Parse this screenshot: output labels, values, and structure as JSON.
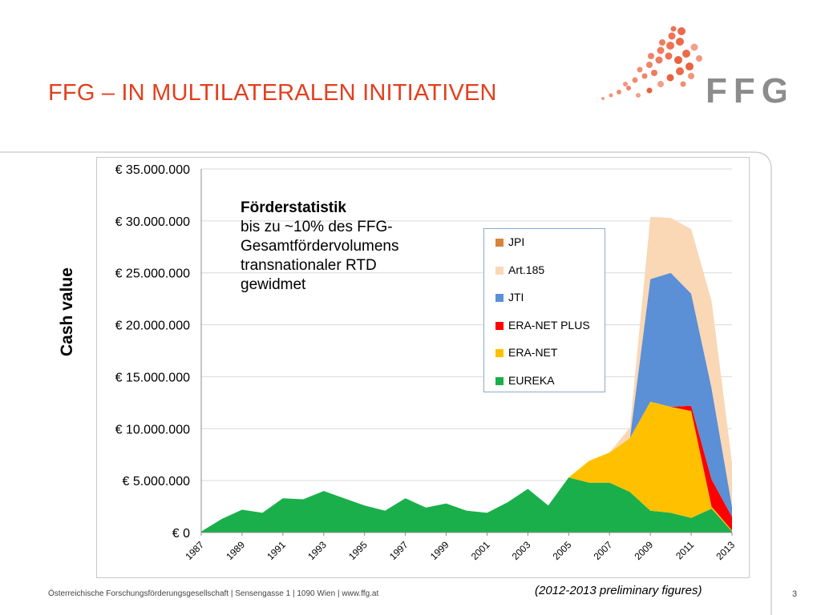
{
  "slide": {
    "title": "FFG – IN MULTILATERALEN INITIATIVEN",
    "logo_text": "FFG",
    "footer": "Österreichische Forschungsförderungsgesellschaft | Sensengasse 1 | 1090 Wien | www.ffg.at",
    "note": "(2012-2013 preliminary figures)",
    "page_number": "3"
  },
  "colors": {
    "title": "#e2401f",
    "logo_dots": "#e8502a",
    "logo_text": "#8c8c8c"
  },
  "annotation": {
    "heading": "Förderstatistik",
    "lines": [
      "bis zu ~10% des FFG-",
      "Gesamtfördervolumens",
      "transnationaler RTD",
      "gewidmet"
    ]
  },
  "chart_data": {
    "type": "area",
    "stacked": true,
    "ylabel": "Cash value",
    "xlabel": "",
    "ylim": [
      0,
      35000000
    ],
    "yticks": [
      0,
      5000000,
      10000000,
      15000000,
      20000000,
      25000000,
      30000000,
      35000000
    ],
    "ytick_labels": [
      "€ 0",
      "€ 5.000.000",
      "€ 10.000.000",
      "€ 15.000.000",
      "€ 20.000.000",
      "€ 25.000.000",
      "€ 30.000.000",
      "€ 35.000.000"
    ],
    "x": [
      1987,
      1988,
      1989,
      1990,
      1991,
      1992,
      1993,
      1994,
      1995,
      1996,
      1997,
      1998,
      1999,
      2000,
      2001,
      2002,
      2003,
      2004,
      2005,
      2006,
      2007,
      2008,
      2009,
      2010,
      2011,
      2012,
      2013
    ],
    "xtick_labels": [
      "1987",
      "1989",
      "1991",
      "1993",
      "1995",
      "1997",
      "1999",
      "2001",
      "2003",
      "2005",
      "2007",
      "2009",
      "2011",
      "2013"
    ],
    "grid": "horizontal",
    "legend_position": "inside-right",
    "series": [
      {
        "name": "EUREKA",
        "color": "#1aaf4b",
        "values": [
          100000,
          1300000,
          2200000,
          1900000,
          3300000,
          3200000,
          4000000,
          3300000,
          2600000,
          2100000,
          3300000,
          2400000,
          2800000,
          2100000,
          1900000,
          2900000,
          4200000,
          2600000,
          5300000,
          4800000,
          4800000,
          3900000,
          2100000,
          1900000,
          1400000,
          2300000,
          100000
        ]
      },
      {
        "name": "ERA-NET",
        "color": "#ffc000",
        "values": [
          0,
          0,
          0,
          0,
          0,
          0,
          0,
          0,
          0,
          0,
          0,
          0,
          0,
          0,
          0,
          0,
          0,
          0,
          0,
          2100000,
          2900000,
          5200000,
          10500000,
          10200000,
          10300000,
          200000,
          100000
        ]
      },
      {
        "name": "ERA-NET PLUS",
        "color": "#ff0000",
        "values": [
          0,
          0,
          0,
          0,
          0,
          0,
          0,
          0,
          0,
          0,
          0,
          0,
          0,
          0,
          0,
          0,
          0,
          0,
          0,
          0,
          0,
          0,
          0,
          0,
          500000,
          2600000,
          1300000
        ]
      },
      {
        "name": "JTI",
        "color": "#5b8fd6",
        "values": [
          0,
          0,
          0,
          0,
          0,
          0,
          0,
          0,
          0,
          0,
          0,
          0,
          0,
          0,
          0,
          0,
          0,
          0,
          0,
          0,
          0,
          0,
          11800000,
          12900000,
          10800000,
          8800000,
          1000000
        ]
      },
      {
        "name": "Art.185",
        "color": "#fad7b5",
        "values": [
          0,
          0,
          0,
          0,
          0,
          0,
          0,
          0,
          0,
          0,
          0,
          0,
          0,
          0,
          0,
          0,
          0,
          0,
          0,
          0,
          0,
          1000000,
          6000000,
          5300000,
          6200000,
          8400000,
          4200000
        ]
      },
      {
        "name": "JPI",
        "color": "#d9833b",
        "values": [
          0,
          0,
          0,
          0,
          0,
          0,
          0,
          0,
          0,
          0,
          0,
          0,
          0,
          0,
          0,
          0,
          0,
          0,
          0,
          0,
          0,
          0,
          0,
          0,
          0,
          0,
          0
        ]
      }
    ],
    "legend_order": [
      "JPI",
      "Art.185",
      "JTI",
      "ERA-NET PLUS",
      "ERA-NET",
      "EUREKA"
    ]
  }
}
